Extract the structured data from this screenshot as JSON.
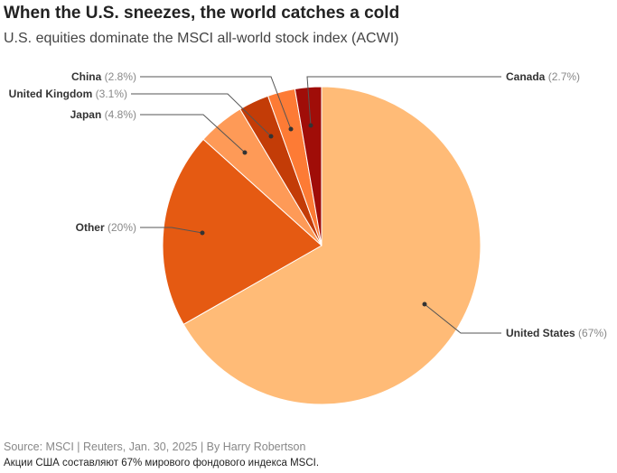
{
  "title": "When the U.S. sneezes, the world catches a cold",
  "subtitle": "U.S. equities dominate the MSCI all-world stock index (ACWI)",
  "source": "Source: MSCI | Reuters, Jan. 30, 2025 | By Harry Robertson",
  "note": "Акции США составляют 67% мирового фондового индекса MSCI.",
  "chart_data": {
    "type": "pie",
    "title": "When the U.S. sneezes, the world catches a cold",
    "slices": [
      {
        "name": "United States",
        "value": 67,
        "pct_label": "(67%)",
        "color": "#ffbb77"
      },
      {
        "name": "Other",
        "value": 20,
        "pct_label": "(20%)",
        "color": "#e55a12"
      },
      {
        "name": "Japan",
        "value": 4.8,
        "pct_label": "(4.8%)",
        "color": "#fe9a57"
      },
      {
        "name": "United Kingdom",
        "value": 3.1,
        "pct_label": "(3.1%)",
        "color": "#c33c07"
      },
      {
        "name": "China",
        "value": 2.8,
        "pct_label": "(2.8%)",
        "color": "#fd7b35"
      },
      {
        "name": "Canada",
        "value": 2.7,
        "pct_label": "(2.7%)",
        "color": "#a00d08"
      }
    ]
  }
}
